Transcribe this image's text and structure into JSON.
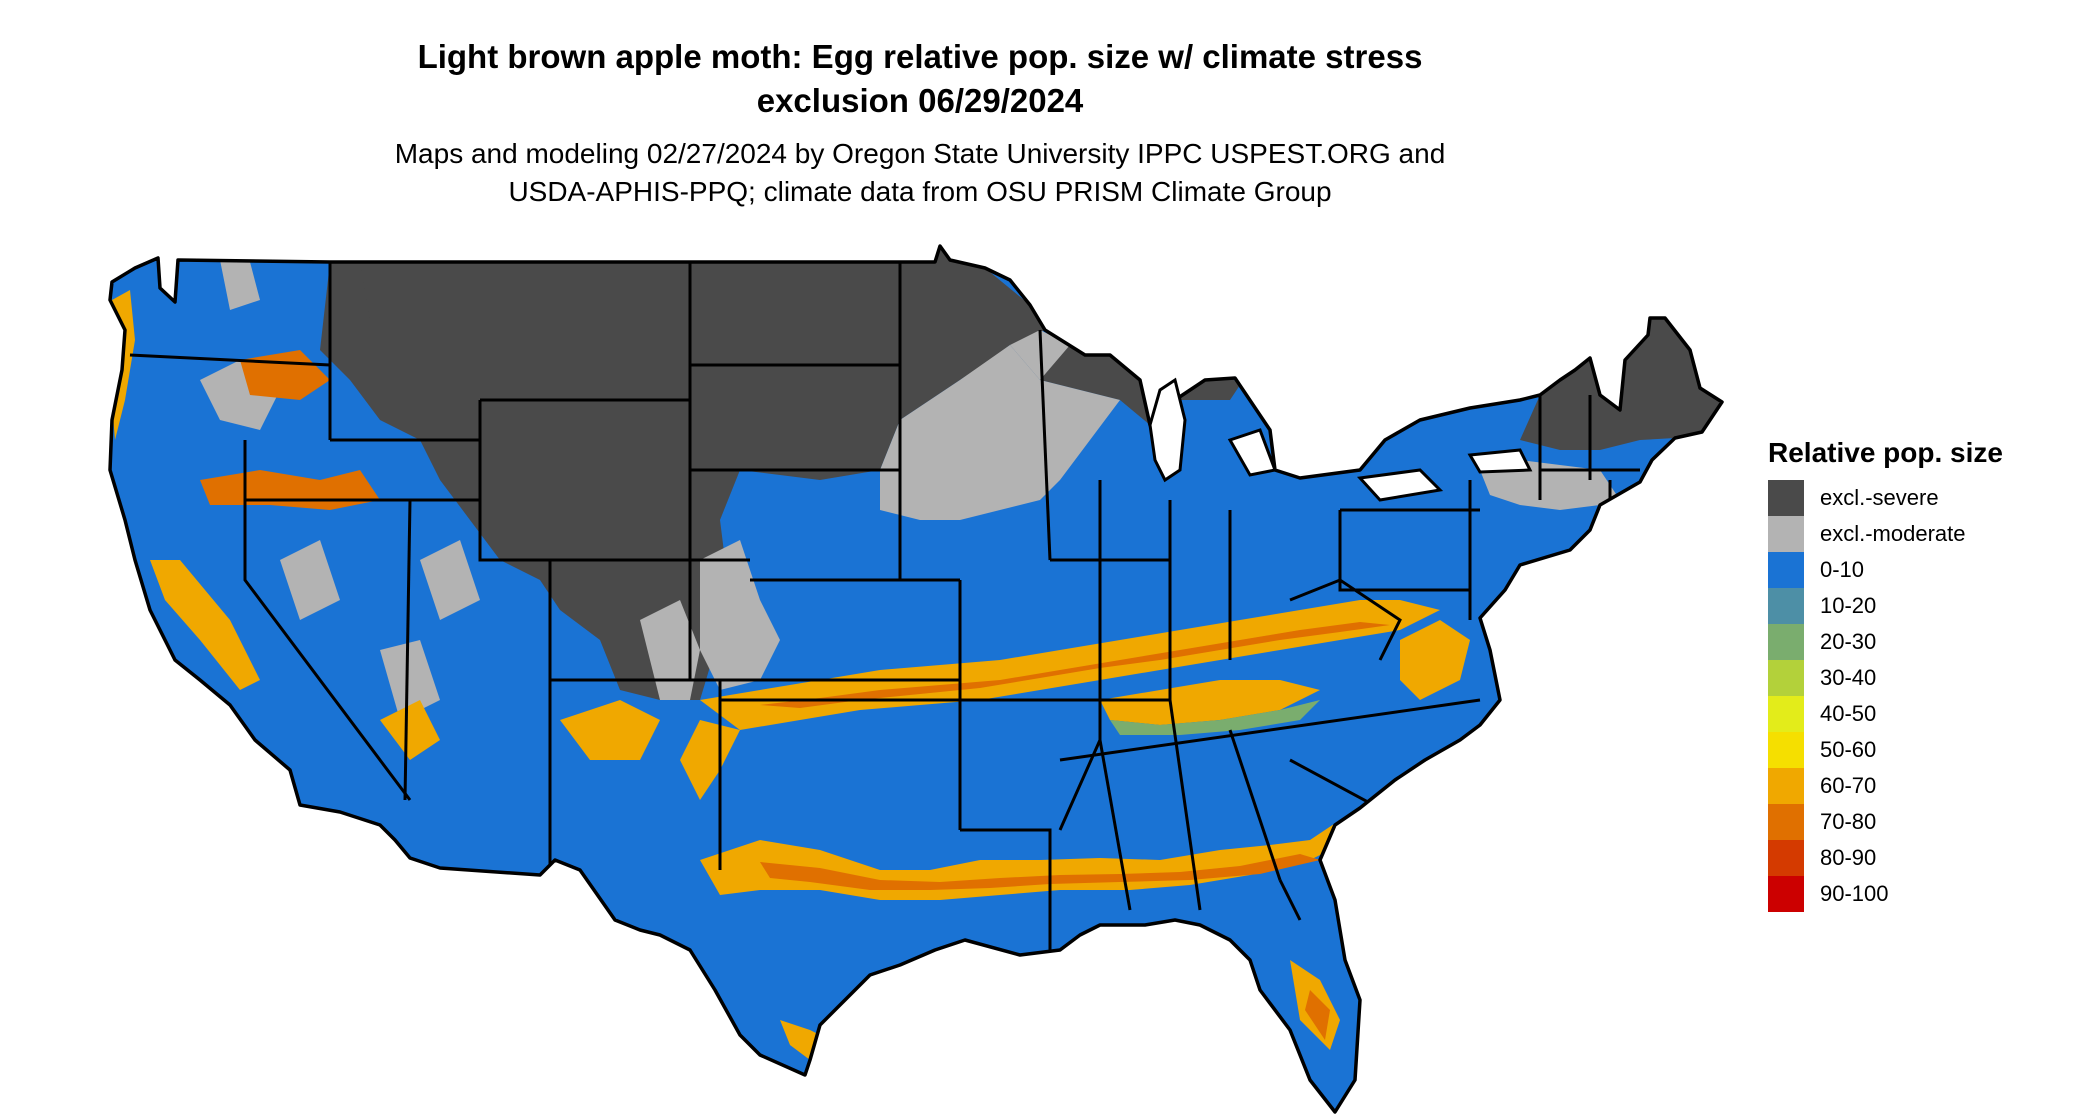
{
  "title_line1": "Light brown apple moth: Egg relative pop. size w/ climate stress",
  "title_line2": "exclusion 06/29/2024",
  "subtitle_line1": "Maps and modeling 02/27/2024 by Oregon State University IPPC USPEST.ORG and",
  "subtitle_line2": "USDA-APHIS-PPQ; climate data from OSU PRISM Climate Group",
  "legend": {
    "title": "Relative pop. size",
    "items": [
      {
        "label": "excl.-severe",
        "color": "#4a4a4a"
      },
      {
        "label": "excl.-moderate",
        "color": "#b3b3b3"
      },
      {
        "label": "0-10",
        "color": "#1a73d4"
      },
      {
        "label": "10-20",
        "color": "#4d8fa6"
      },
      {
        "label": "20-30",
        "color": "#7aad6e"
      },
      {
        "label": "30-40",
        "color": "#b3d13a"
      },
      {
        "label": "40-50",
        "color": "#e3ec1a"
      },
      {
        "label": "50-60",
        "color": "#f5df00"
      },
      {
        "label": "60-70",
        "color": "#f0a800"
      },
      {
        "label": "70-80",
        "color": "#e07000"
      },
      {
        "label": "80-90",
        "color": "#d43a00"
      },
      {
        "label": "90-100",
        "color": "#cc0000"
      }
    ]
  }
}
